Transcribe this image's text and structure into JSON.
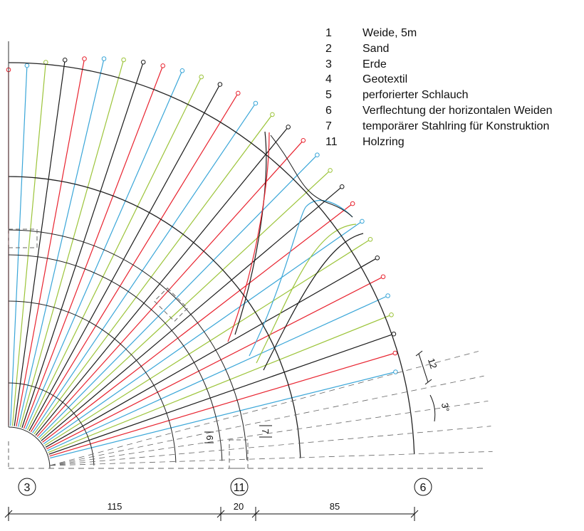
{
  "legend": [
    {
      "num": "1",
      "label": "Weide, 5m"
    },
    {
      "num": "2",
      "label": "Sand"
    },
    {
      "num": "3",
      "label": "Erde"
    },
    {
      "num": "4",
      "label": "Geotextil"
    },
    {
      "num": "5",
      "label": "perforierter Schlauch"
    },
    {
      "num": "6",
      "label": "Verflechtung der horizontalen Weiden"
    },
    {
      "num": "7",
      "label": "temporärer Stahlring für Konstruktion"
    },
    {
      "num": "11",
      "label": "Holzring"
    }
  ],
  "markers": [
    {
      "label": "3"
    },
    {
      "label": "11"
    },
    {
      "label": "6"
    }
  ],
  "dimensions": {
    "seg1": "115",
    "seg2": "20",
    "seg3": "85",
    "spacing": "12",
    "angle": "3°",
    "small_a": "6",
    "small_b": "7"
  },
  "colors": {
    "red": "#e8232f",
    "blue": "#3aa6d8",
    "green": "#9cc43a",
    "black": "#1a1a1a",
    "dash": "#666666"
  }
}
